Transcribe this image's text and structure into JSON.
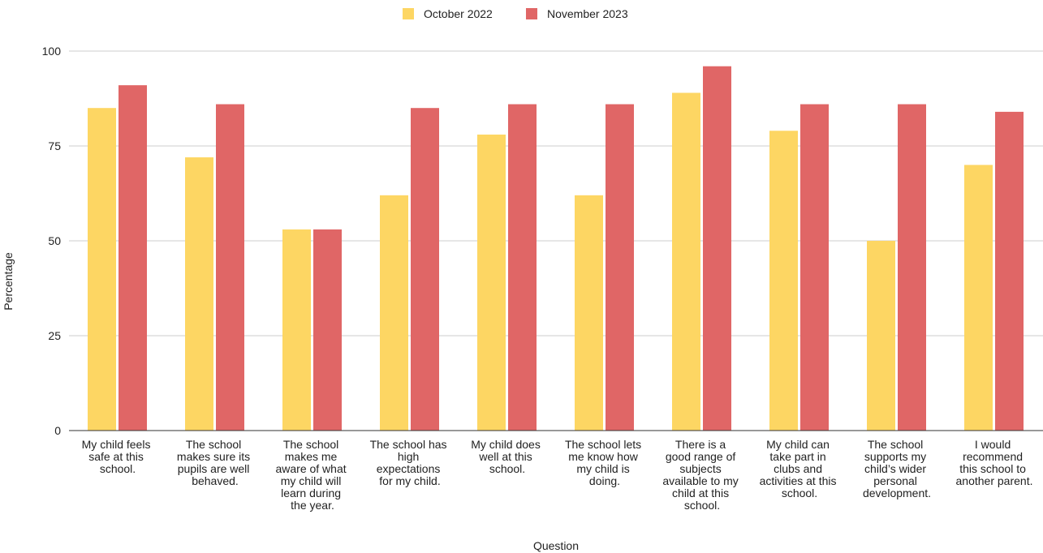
{
  "chart_data": {
    "type": "bar",
    "x_label": "Question",
    "y_label": "Percentage",
    "categories": [
      "My child feels safe at this school.",
      "The school makes sure its pupils are well behaved.",
      "The school makes me aware of what my child will learn during the year.",
      "The school has high expectations for my child.",
      "My child does well at this school.",
      "The school lets me know how my child is doing.",
      "There is a good range of subjects available to my child at this school.",
      "My child can take part in clubs and activities at this school.",
      "The school supports my child’s wider personal development.",
      "I would recommend this school to another parent."
    ],
    "series": [
      {
        "name": "October 2022",
        "color": "#fdd663",
        "values": [
          85,
          72,
          53,
          62,
          78,
          62,
          89,
          79,
          50,
          70
        ]
      },
      {
        "name": "November 2023",
        "color": "#e06666",
        "values": [
          91,
          86,
          53,
          85,
          86,
          86,
          96,
          86,
          86,
          84
        ]
      }
    ],
    "ylim": [
      0,
      100
    ],
    "yticks": [
      0,
      25,
      50,
      75,
      100
    ],
    "grid": true,
    "legend": "top"
  }
}
